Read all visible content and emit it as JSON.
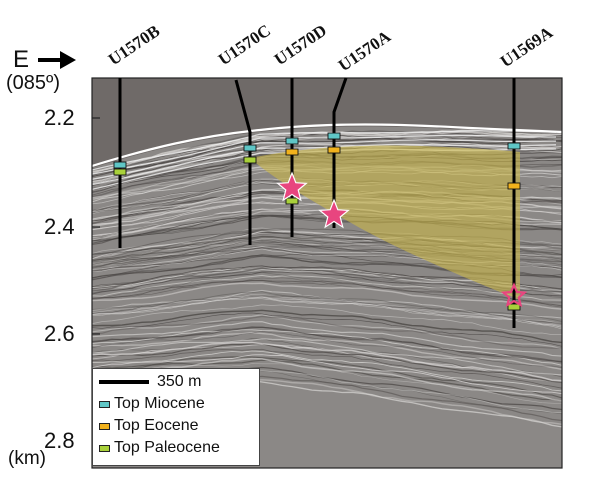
{
  "direction": {
    "label": "E",
    "azimuth": "(085º)"
  },
  "depth_axis": {
    "unit": "(km)",
    "ticks": [
      "2.2",
      "2.4",
      "2.6",
      "2.8"
    ]
  },
  "sites": [
    {
      "name": "U1570B"
    },
    {
      "name": "U1570C"
    },
    {
      "name": "U1570D"
    },
    {
      "name": "U1570A"
    },
    {
      "name": "U1569A"
    }
  ],
  "legend": {
    "scale_bar": "350 m",
    "items": [
      {
        "label": "Top Miocene",
        "color": "#5fc6c6"
      },
      {
        "label": "Top Eocene",
        "color": "#f2b21c"
      },
      {
        "label": "Top Paleocene",
        "color": "#a9d13a"
      }
    ]
  },
  "colors": {
    "water": "#6f6a68",
    "sediment": "#8a8785",
    "wedge": "#c8b449",
    "star": "#e8457f"
  },
  "icons": {
    "arrow": "arrow-right-icon",
    "star": "star-icon"
  }
}
